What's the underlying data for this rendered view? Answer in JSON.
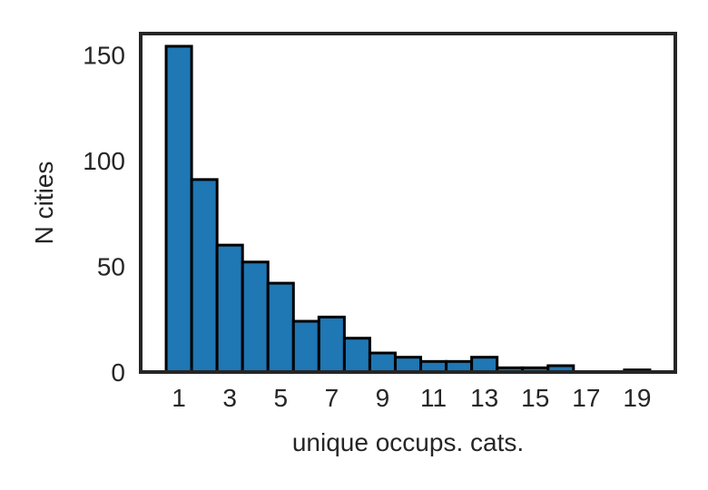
{
  "chart_data": {
    "type": "bar",
    "xlabel": "unique occups. cats.",
    "ylabel": "N cities",
    "categories": [
      1,
      2,
      3,
      4,
      5,
      6,
      7,
      8,
      9,
      10,
      11,
      12,
      13,
      14,
      15,
      16,
      17,
      18,
      19
    ],
    "values": [
      154,
      91,
      60,
      52,
      42,
      24,
      26,
      16,
      9,
      7,
      5,
      5,
      7,
      2,
      2,
      3,
      0,
      0,
      1
    ],
    "xlim": [
      -0.5,
      20.5
    ],
    "ylim": [
      0,
      160
    ],
    "x_ticks": [
      1,
      3,
      5,
      7,
      9,
      11,
      13,
      15,
      17,
      19
    ],
    "y_ticks": [
      0,
      50,
      100,
      150
    ],
    "grid": false,
    "bar_color": "#1f77b4",
    "edge_color": "#000000",
    "frame_color": "#262626"
  }
}
